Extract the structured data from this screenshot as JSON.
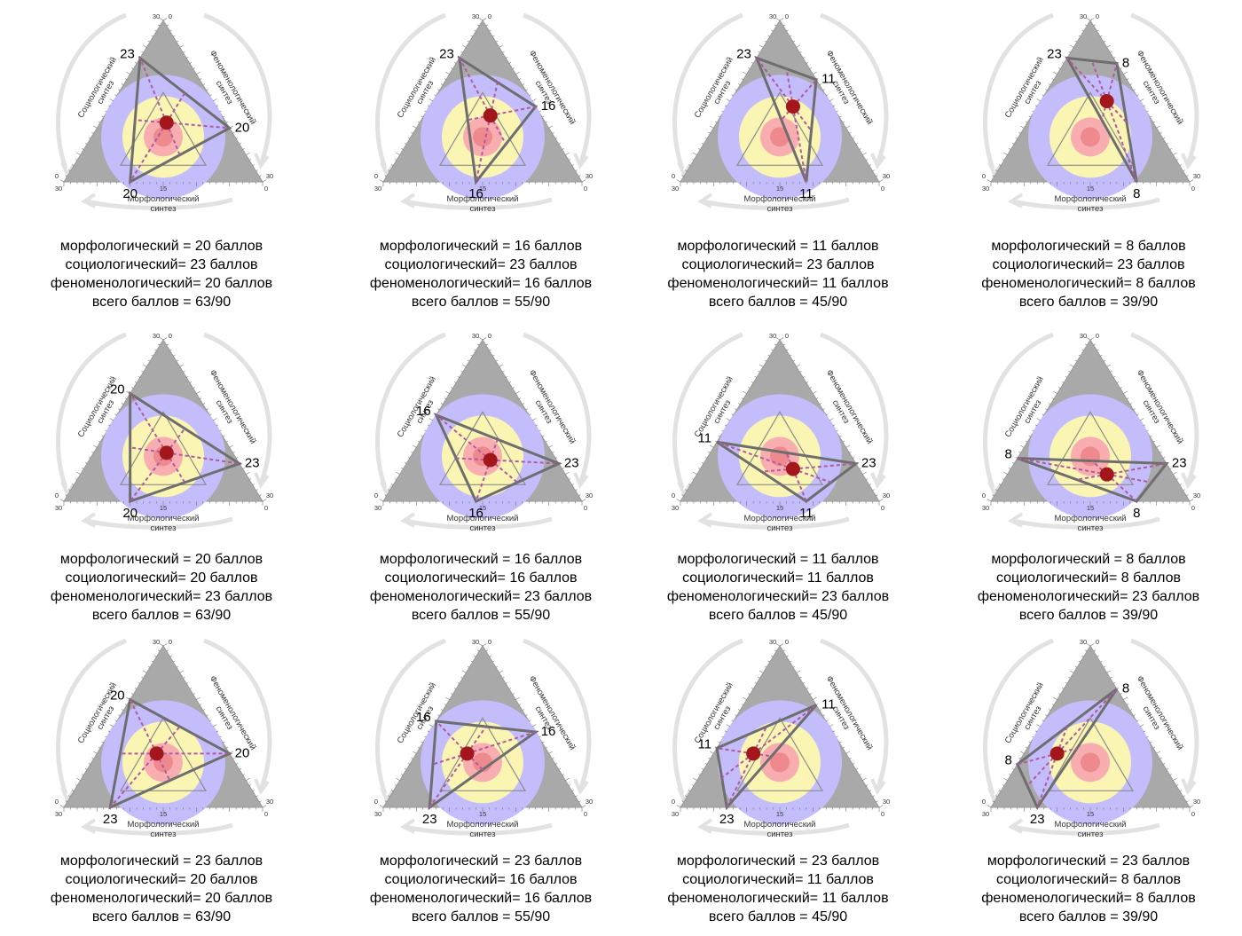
{
  "ticks": {
    "min": "0",
    "mid": "15",
    "max": "30"
  },
  "axis_names": {
    "morph": [
      "Морфологический",
      "синтез"
    ],
    "socio": [
      "Социологический",
      "синтез"
    ],
    "pheno": [
      "Феноменологический",
      "синтез"
    ]
  },
  "colors": {
    "triangle": "#a9a9a9",
    "outer_disc": "#c3bdfb",
    "inner_disc": "#fbf5b3",
    "core_outer": "#f8aeb0",
    "core_inner": "#ee8a8e",
    "polygon": "#6e6e6e",
    "dashed": "#b05aa4",
    "center_dot": "#a3161b",
    "arrows": "#e2e2e2"
  },
  "panels": [
    {
      "m": 20,
      "s": 23,
      "p": 20,
      "labels": {
        "m": "20",
        "s": "23",
        "p": "20"
      },
      "caption": [
        "морфологический = 20 баллов",
        "социологический= 23 баллов",
        "феноменологический= 20 баллов",
        "всего баллов = 63/90"
      ]
    },
    {
      "m": 16,
      "s": 23,
      "p": 16,
      "labels": {
        "m": "16",
        "s": "23",
        "p": "16"
      },
      "caption": [
        "морфологический = 16 баллов",
        "социологический= 23 баллов",
        "феноменологический= 16 баллов",
        "всего баллов = 55/90"
      ]
    },
    {
      "m": 11,
      "s": 23,
      "p": 11,
      "labels": {
        "m": "11",
        "s": "23",
        "p": "11"
      },
      "caption": [
        "морфологический = 11 баллов",
        "социологический= 23 баллов",
        "феноменологический= 11 баллов",
        "всего баллов = 45/90"
      ]
    },
    {
      "m": 8,
      "s": 23,
      "p": 8,
      "labels": {
        "m": "8",
        "s": "23",
        "p": "8"
      },
      "caption": [
        "морфологический = 8 баллов",
        "социологический= 23 баллов",
        "феноменологический= 8 баллов",
        "всего баллов = 39/90"
      ]
    },
    {
      "m": 20,
      "s": 20,
      "p": 23,
      "labels": {
        "m": "20",
        "s": "20",
        "p": "23"
      },
      "caption": [
        "морфологический = 20 баллов",
        "социологический= 20 баллов",
        "феноменологический= 23 баллов",
        "всего баллов = 63/90"
      ]
    },
    {
      "m": 16,
      "s": 16,
      "p": 23,
      "labels": {
        "m": "16",
        "s": "16",
        "p": "23"
      },
      "caption": [
        "морфологический = 16 баллов",
        "социологический= 16 баллов",
        "феноменологический= 23 баллов",
        "всего баллов = 55/90"
      ]
    },
    {
      "m": 11,
      "s": 11,
      "p": 23,
      "labels": {
        "m": "11",
        "s": "11",
        "p": "23"
      },
      "caption": [
        "морфологический = 11 баллов",
        "социологический= 11 баллов",
        "феноменологический= 23 баллов",
        "всего баллов = 45/90"
      ]
    },
    {
      "m": 8,
      "s": 8,
      "p": 23,
      "labels": {
        "m": "8",
        "s": "8",
        "p": "23"
      },
      "caption": [
        "морфологический = 8 баллов",
        "социологический= 8 баллов",
        "феноменологический= 23 баллов",
        "всего баллов = 39/90"
      ]
    },
    {
      "m": 23,
      "s": 20,
      "p": 20,
      "labels": {
        "m": "23",
        "s": "20",
        "p": "20"
      },
      "caption": [
        "морфологический = 23 баллов",
        "социологический= 20 баллов",
        "феноменологический= 20 баллов",
        "всего баллов = 63/90"
      ]
    },
    {
      "m": 23,
      "s": 16,
      "p": 16,
      "labels": {
        "m": "23",
        "s": "16",
        "p": "16"
      },
      "caption": [
        "морфологический = 23 баллов",
        "социологический= 16 баллов",
        "феноменологический= 16 баллов",
        "всего баллов = 55/90"
      ]
    },
    {
      "m": 23,
      "s": 11,
      "p": 11,
      "labels": {
        "m": "23",
        "s": "11",
        "p": "11"
      },
      "caption": [
        "морфологический = 23 баллов",
        "социологический= 11 баллов",
        "феноменологический= 11 баллов",
        "всего баллов = 45/90"
      ]
    },
    {
      "m": 23,
      "s": 8,
      "p": 8,
      "labels": {
        "m": "23",
        "s": "8",
        "p": "8"
      },
      "caption": [
        "морфологический = 23 баллов",
        "социологический= 8 баллов",
        "феноменологический= 8 баллов",
        "всего баллов = 39/90"
      ]
    }
  ]
}
